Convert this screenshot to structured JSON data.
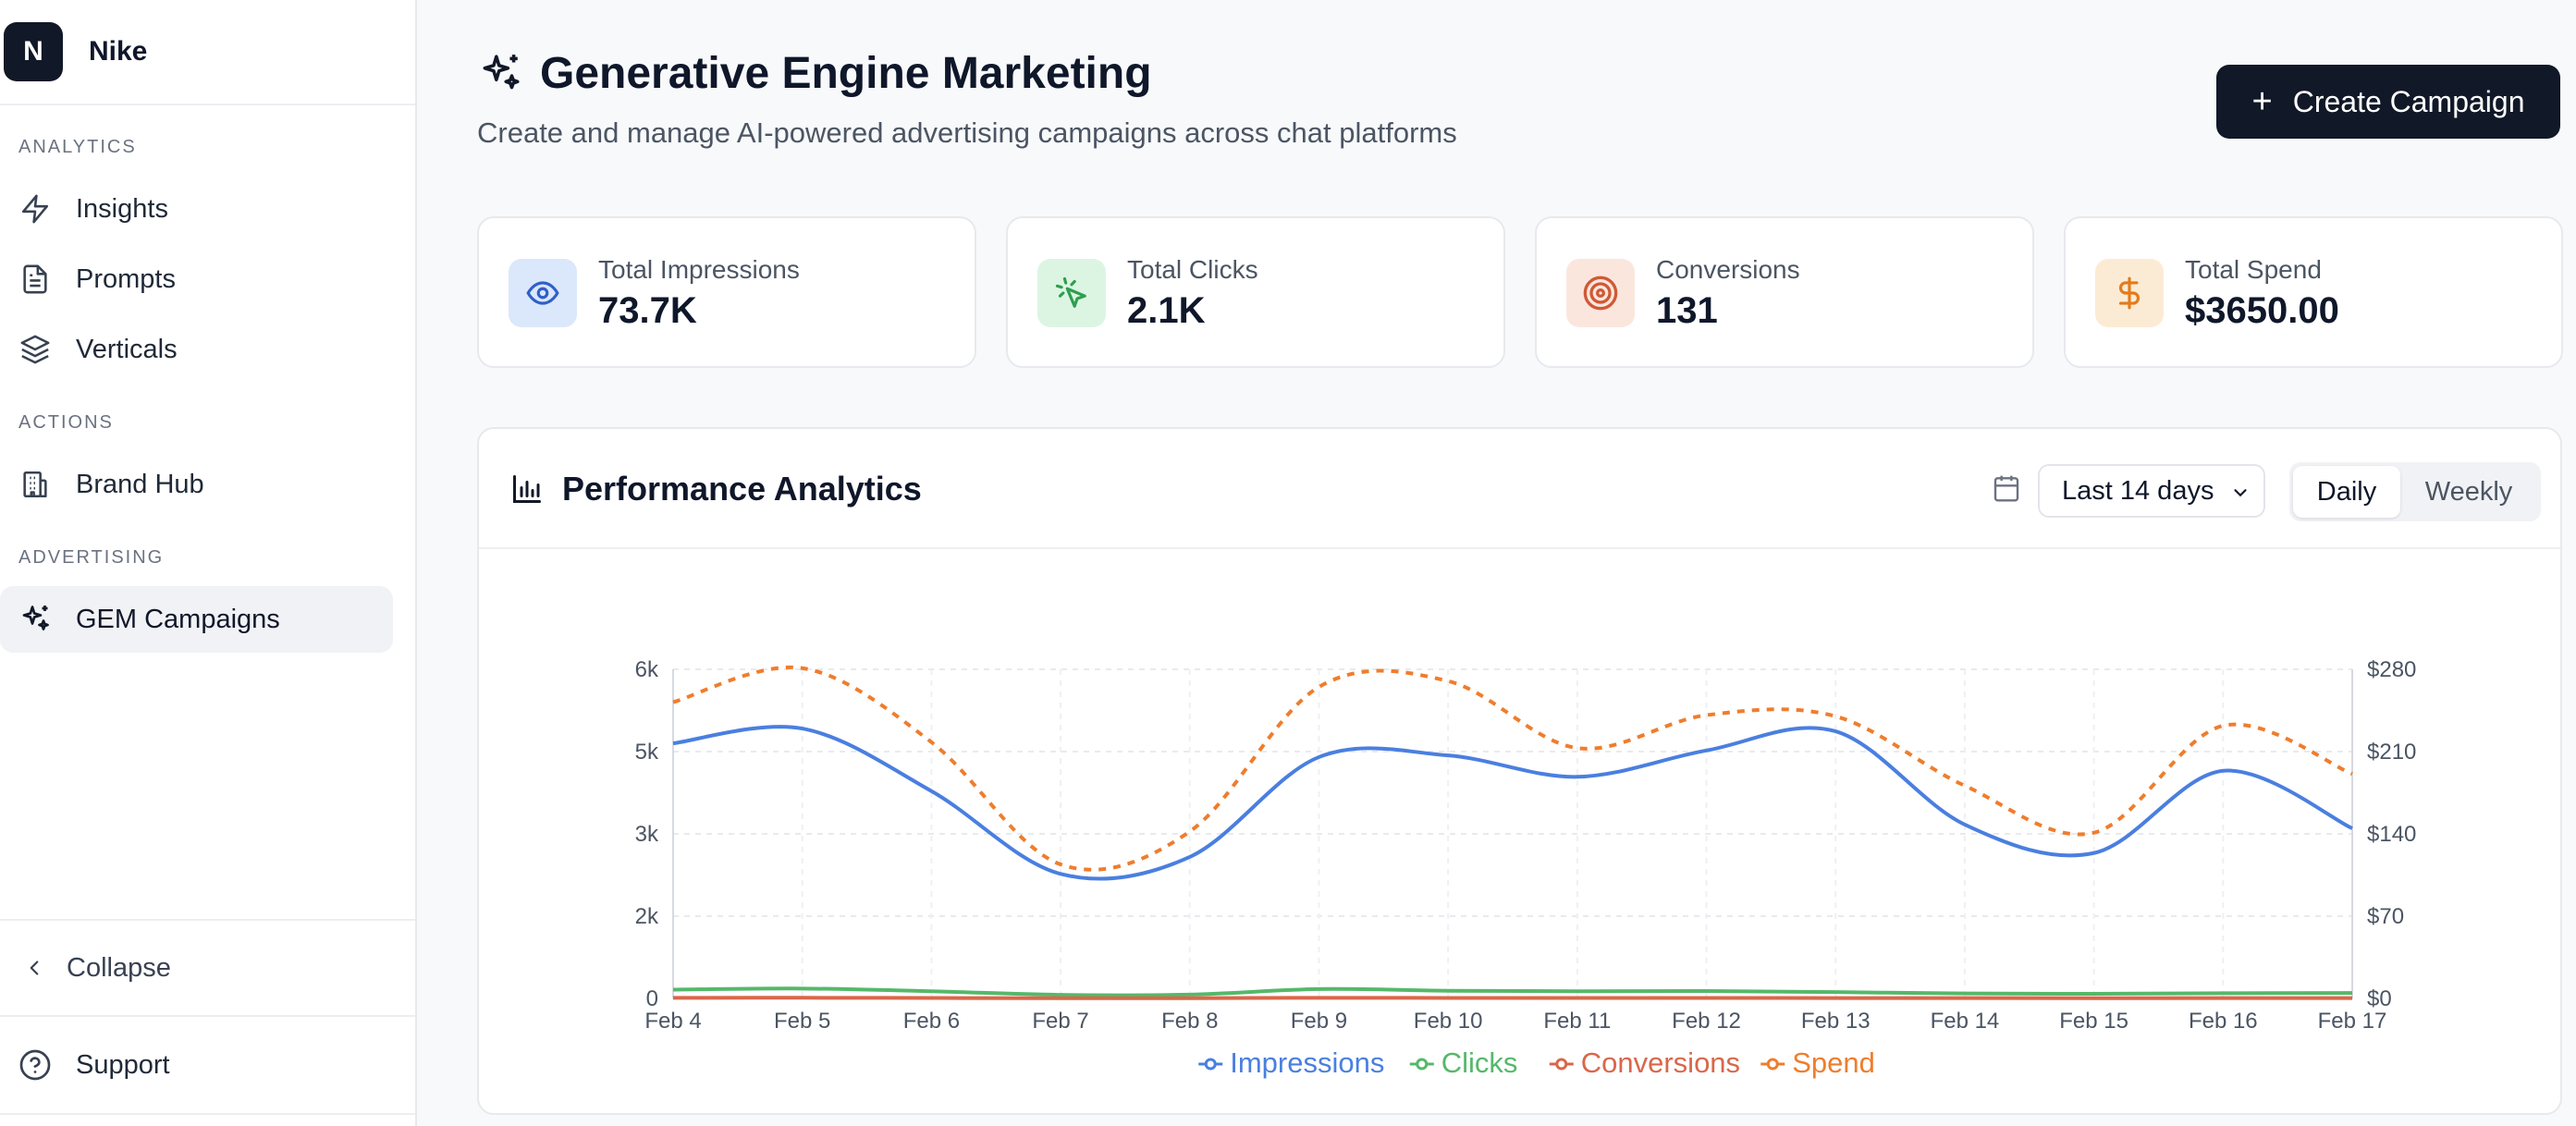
{
  "brand": {
    "initial": "N",
    "name": "Nike"
  },
  "sidebar": {
    "sections": [
      {
        "label": "ANALYTICS",
        "items": [
          {
            "label": "Insights",
            "icon": "zap-icon"
          },
          {
            "label": "Prompts",
            "icon": "file-text-icon"
          },
          {
            "label": "Verticals",
            "icon": "layers-icon"
          }
        ]
      },
      {
        "label": "ACTIONS",
        "items": [
          {
            "label": "Brand Hub",
            "icon": "building-icon"
          }
        ]
      },
      {
        "label": "ADVERTISING",
        "items": [
          {
            "label": "GEM Campaigns",
            "icon": "sparkles-icon",
            "active": true
          }
        ]
      }
    ],
    "collapse_label": "Collapse",
    "support_label": "Support"
  },
  "header": {
    "title": "Generative Engine Marketing",
    "subtitle": "Create and manage AI-powered advertising campaigns across chat platforms",
    "create_button": "Create Campaign"
  },
  "stats": [
    {
      "label": "Total Impressions",
      "value": "73.7K",
      "icon": "eye-icon",
      "bg": "#dbe7fb",
      "fg": "#2f5fc9"
    },
    {
      "label": "Total Clicks",
      "value": "2.1K",
      "icon": "cursor-click-icon",
      "bg": "#dcf5e3",
      "fg": "#2e9e4f"
    },
    {
      "label": "Conversions",
      "value": "131",
      "icon": "target-icon",
      "bg": "#fbe6de",
      "fg": "#cf5a35"
    },
    {
      "label": "Total Spend",
      "value": "$3650.00",
      "icon": "dollar-icon",
      "bg": "#fcebd4",
      "fg": "#e37a1c"
    }
  ],
  "analytics": {
    "title": "Performance Analytics",
    "range": "Last 14 days",
    "toggle": [
      "Daily",
      "Weekly"
    ],
    "active_toggle": "Daily"
  },
  "chart_data": {
    "type": "line",
    "x": [
      "Feb 4",
      "Feb 5",
      "Feb 6",
      "Feb 7",
      "Feb 8",
      "Feb 9",
      "Feb 10",
      "Feb 11",
      "Feb 12",
      "Feb 13",
      "Feb 14",
      "Feb 15",
      "Feb 16",
      "Feb 17"
    ],
    "y_left_ticks": [
      "0",
      "2k",
      "3k",
      "5k",
      "6k"
    ],
    "y_left_tick_values": [
      0,
      1500,
      3000,
      4500,
      6000
    ],
    "y_left_range": [
      0,
      6000
    ],
    "y_right_ticks": [
      "$0",
      "$70",
      "$140",
      "$210",
      "$280"
    ],
    "y_right_tick_values": [
      0,
      70,
      140,
      210,
      280
    ],
    "y_right_range": [
      0,
      280
    ],
    "grid": true,
    "legend_position": "bottom",
    "series": [
      {
        "name": "Impressions",
        "axis": "left",
        "color": "#4a7fe0",
        "dashed": false,
        "values": [
          4650,
          4920,
          3780,
          2270,
          2580,
          4400,
          4430,
          4040,
          4520,
          4870,
          3170,
          2650,
          4150,
          3100
        ]
      },
      {
        "name": "Clicks",
        "axis": "left",
        "color": "#55b86a",
        "dashed": false,
        "values": [
          160,
          180,
          130,
          65,
          70,
          170,
          140,
          130,
          135,
          115,
          90,
          85,
          95,
          100
        ]
      },
      {
        "name": "Conversions",
        "axis": "left",
        "color": "#d9674a",
        "dashed": false,
        "values": [
          10,
          12,
          8,
          4,
          4,
          11,
          9,
          8,
          9,
          7,
          6,
          5,
          6,
          6
        ]
      },
      {
        "name": "Spend",
        "axis": "right",
        "color": "#ef7d2d",
        "dashed": true,
        "dash": "8,8",
        "values": [
          252,
          281,
          218,
          114,
          142,
          265,
          270,
          213,
          241,
          240,
          181,
          141,
          232,
          191
        ]
      }
    ]
  }
}
